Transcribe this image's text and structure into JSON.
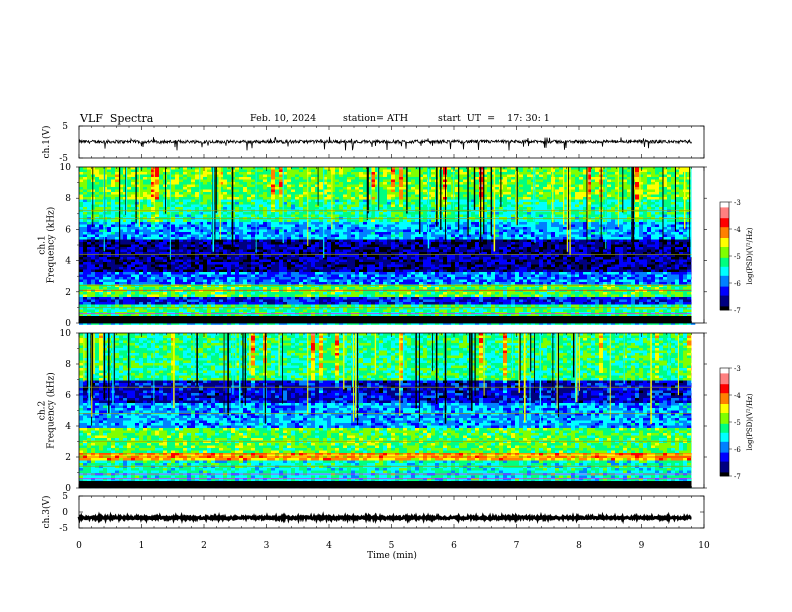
{
  "header": {
    "title": "VLF  Spectra",
    "date": "Feb. 10, 2024",
    "station": "station= ATH",
    "start_ut": "start  UT  =    17: 30: 1"
  },
  "colors": {
    "colormap": [
      "#000000",
      "#000080",
      "#0000ff",
      "#0080ff",
      "#00ffff",
      "#00ff80",
      "#80ff00",
      "#ffff00",
      "#ff8000",
      "#ff0000",
      "#ff8080",
      "#ffffff"
    ]
  },
  "chart_data": [
    {
      "type": "line",
      "panel": "ch1-waveform",
      "ylabel": "ch.1(V)",
      "ylim": [
        -5,
        5
      ],
      "yticks": [
        "5",
        "-5"
      ],
      "x_range_min": [
        0,
        9.8
      ],
      "mean_value": 0.1,
      "noise_amplitude": 0.5,
      "spikes": "frequent downward spikes to about -2 V"
    },
    {
      "type": "heatmap",
      "panel": "ch1-spectrogram",
      "ylabel": "ch.1\nFrequency  (kHz)",
      "ylabel_top": "ch.1",
      "ylabel_bottom": "Frequency  (kHz)",
      "ylim": [
        0,
        10
      ],
      "yticks": [
        "0",
        "2",
        "4",
        "6",
        "8",
        "10"
      ],
      "colorbar_label": "log(PSD)(V²/Hz)",
      "colorbar_ticks": [
        "-3",
        "-4",
        "-5",
        "-6",
        "-7"
      ],
      "clim": [
        -7,
        -3
      ],
      "bands_khz": [
        {
          "from": 0.0,
          "to": 0.5,
          "level": -5.5
        },
        {
          "from": 0.5,
          "to": 1.2,
          "level": -5.2
        },
        {
          "from": 1.2,
          "to": 1.8,
          "level": -6.3
        },
        {
          "from": 1.8,
          "to": 2.6,
          "level": -5.0
        },
        {
          "from": 2.6,
          "to": 3.4,
          "level": -6.0
        },
        {
          "from": 3.4,
          "to": 5.5,
          "level": -6.6
        },
        {
          "from": 5.5,
          "to": 6.5,
          "level": -5.8
        },
        {
          "from": 6.5,
          "to": 8.0,
          "level": -5.3
        },
        {
          "from": 8.0,
          "to": 10.0,
          "level": -4.9
        }
      ]
    },
    {
      "type": "heatmap",
      "panel": "ch2-spectrogram",
      "ylabel": "ch.2\nFrequency  (kHz)",
      "ylabel_top": "ch.2",
      "ylabel_bottom": "Frequency  (kHz)",
      "ylim": [
        0,
        10
      ],
      "yticks": [
        "0",
        "2",
        "4",
        "6",
        "8",
        "10"
      ],
      "colorbar_label": "log(PSD)(V²/Hz)",
      "colorbar_ticks": [
        "-3",
        "-4",
        "-5",
        "-6",
        "-7"
      ],
      "clim": [
        -7,
        -3
      ],
      "bands_khz": [
        {
          "from": 0.0,
          "to": 0.5,
          "level": -5.6
        },
        {
          "from": 0.5,
          "to": 1.8,
          "level": -5.4
        },
        {
          "from": 1.8,
          "to": 2.4,
          "level": -4.3
        },
        {
          "from": 2.4,
          "to": 4.0,
          "level": -5.0
        },
        {
          "from": 4.0,
          "to": 5.5,
          "level": -5.8
        },
        {
          "from": 5.5,
          "to": 7.0,
          "level": -6.4
        },
        {
          "from": 7.0,
          "to": 10.0,
          "level": -5.2
        }
      ]
    },
    {
      "type": "line",
      "panel": "ch3-waveform",
      "ylabel": "ch.3(V)",
      "ylim": [
        -5,
        5
      ],
      "yticks": [
        "5",
        "0",
        "-5"
      ],
      "x_range_min": [
        0,
        9.8
      ],
      "mean_value": -1.8,
      "noise_amplitude": 0.35
    }
  ],
  "xaxis": {
    "label": "Time  (min)",
    "xlim": [
      0,
      10
    ],
    "ticks": [
      "0",
      "1",
      "2",
      "3",
      "4",
      "5",
      "6",
      "7",
      "8",
      "9",
      "10"
    ]
  }
}
